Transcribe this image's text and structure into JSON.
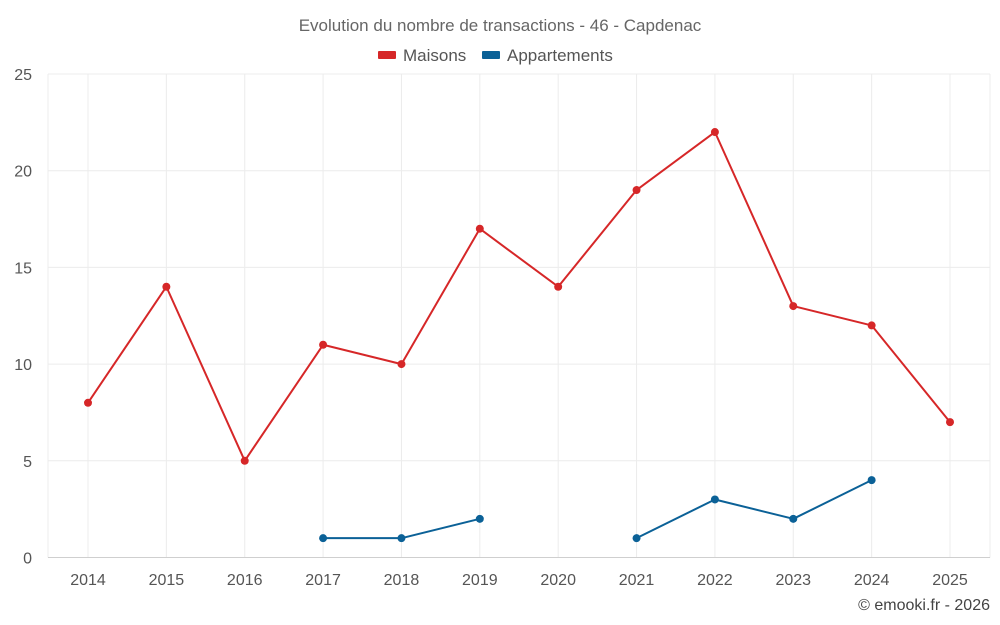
{
  "chart_data": {
    "type": "line",
    "title": "Evolution du nombre de transactions - 46 - Capdenac",
    "categories": [
      "2014",
      "2015",
      "2016",
      "2017",
      "2018",
      "2019",
      "2020",
      "2021",
      "2022",
      "2023",
      "2024",
      "2025"
    ],
    "series": [
      {
        "name": "Maisons",
        "color": "#d62728",
        "values": [
          8,
          14,
          5,
          11,
          10,
          17,
          14,
          19,
          22,
          13,
          12,
          7
        ]
      },
      {
        "name": "Appartements",
        "color": "#0b6197",
        "values": [
          null,
          null,
          null,
          1,
          1,
          2,
          null,
          1,
          3,
          2,
          4,
          null
        ]
      }
    ],
    "yticks": [
      "0",
      "5",
      "10",
      "15",
      "20",
      "25"
    ],
    "ylim": [
      0,
      25
    ],
    "xlabel": "",
    "ylabel": "",
    "grid": true,
    "legend_position": "top-center",
    "credit": "© emooki.fr - 2026"
  }
}
